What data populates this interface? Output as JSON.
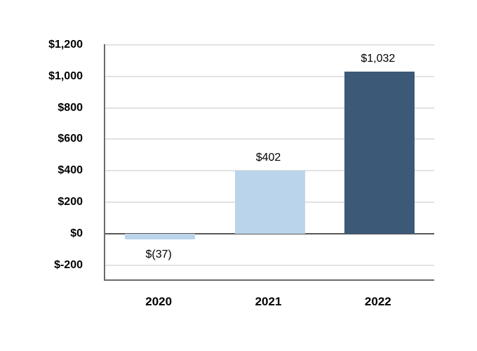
{
  "chart_data": {
    "type": "bar",
    "title": "",
    "xlabel": "",
    "ylabel": "",
    "categories": [
      "2020",
      "2021",
      "2022"
    ],
    "values": [
      -37,
      402,
      1032
    ],
    "data_labels": [
      "$(37)",
      "$402",
      "$1,032"
    ],
    "bar_colors": [
      "#bad5eb",
      "#bad5eb",
      "#3c5a78"
    ],
    "y_ticks": [
      {
        "value": 1200,
        "label": "$1,200"
      },
      {
        "value": 1000,
        "label": "$1,000"
      },
      {
        "value": 800,
        "label": "$800"
      },
      {
        "value": 600,
        "label": "$600"
      },
      {
        "value": 400,
        "label": "$400"
      },
      {
        "value": 200,
        "label": "$200"
      },
      {
        "value": 0,
        "label": "$0"
      },
      {
        "value": -200,
        "label": "$-200"
      }
    ],
    "ylim": [
      -290,
      1204
    ],
    "grid": "horizontal",
    "legend": "none",
    "colors": {
      "light_bar": "#bad5eb",
      "dark_bar": "#3c5a78",
      "gridline": "#e2e2e2",
      "zero_line": "#595959",
      "axis_frame": "#6b6b6b",
      "text": "#000000"
    }
  }
}
